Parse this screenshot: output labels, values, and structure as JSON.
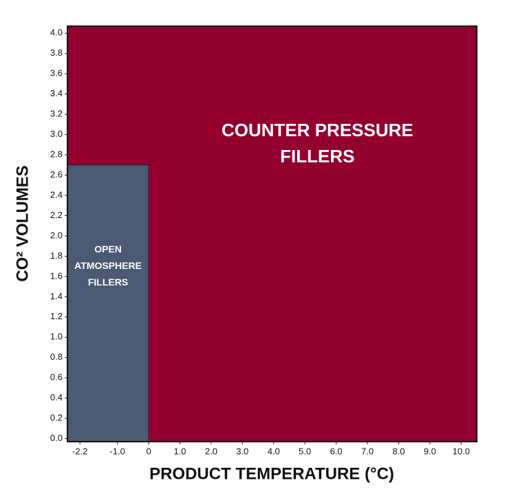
{
  "chart_data": {
    "type": "region",
    "xlabel": "PRODUCT TEMPERATURE (°C)",
    "ylabel": "CO² VOLUMES",
    "xlim": [
      -2.6,
      10.5
    ],
    "ylim": [
      -0.03,
      4.07
    ],
    "xticks": [
      -2.2,
      {
        "value": -1,
        "label": "-1.0"
      },
      0,
      {
        "value": 1,
        "label": "1.0"
      },
      {
        "value": 2,
        "label": "2.0"
      },
      {
        "value": 3,
        "label": "3.0"
      },
      {
        "value": 4,
        "label": "4.0"
      },
      {
        "value": 5,
        "label": "5.0"
      },
      {
        "value": 6,
        "label": "6.0"
      },
      {
        "value": 7,
        "label": "7.0"
      },
      {
        "value": 8,
        "label": "8.0"
      },
      {
        "value": 9,
        "label": "9.0"
      },
      {
        "value": 10,
        "label": "10.0"
      }
    ],
    "yticks": [
      {
        "value": 0,
        "label": "0.0"
      },
      0.2,
      0.4,
      0.6,
      0.8,
      {
        "value": 1,
        "label": "1.0"
      },
      1.2,
      1.4,
      1.6,
      1.8,
      {
        "value": 2,
        "label": "2.0"
      },
      2.2,
      2.4,
      2.6,
      2.8,
      {
        "value": 3,
        "label": "3.0"
      },
      3.2,
      3.4,
      3.6,
      3.8,
      {
        "value": 4,
        "label": "4.0"
      }
    ],
    "regions": [
      {
        "label": [
          "COUNTER PRESSURE",
          "FILLERS"
        ],
        "color": "#930030",
        "x": [
          -2.6,
          10.5
        ],
        "y": [
          -0.03,
          4.07
        ],
        "label_at": [
          5.4,
          2.9
        ]
      },
      {
        "label": [
          "OPEN",
          "ATMOSPHERE",
          "FILLERS"
        ],
        "color": "#4a5a73",
        "x": [
          -2.6,
          0
        ],
        "y": [
          -0.03,
          2.7
        ],
        "label_at": [
          -1.3,
          1.7
        ]
      }
    ]
  }
}
